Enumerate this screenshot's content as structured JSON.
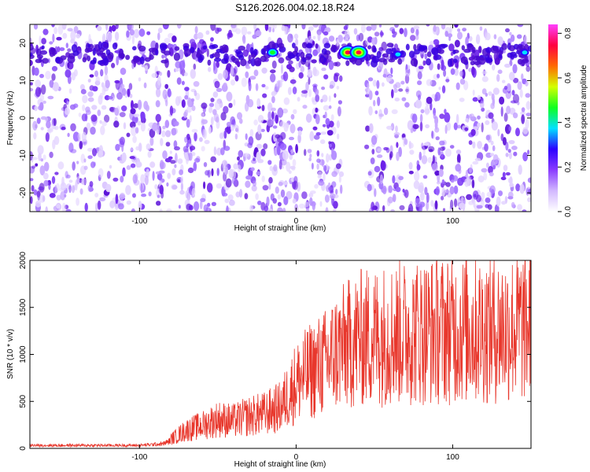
{
  "title": "S126.2026.004.02.18.R24",
  "chart_data": [
    {
      "type": "heatmap",
      "xlabel": "Height of straight line (km)",
      "ylabel": "Frequency (Hz)",
      "xlim": [
        -170,
        150
      ],
      "ylim": [
        -25,
        25
      ],
      "x_ticks": [
        -100,
        0,
        100
      ],
      "y_ticks": [
        -20,
        -10,
        0,
        10,
        20
      ],
      "colorbar": {
        "label": "Normalized spectral amplitude",
        "range": [
          0.0,
          0.84
        ],
        "ticks": [
          0.0,
          0.2,
          0.4,
          0.6,
          0.8
        ],
        "tick_labels": [
          "0.0",
          "0.2",
          "0.4",
          "0.6",
          "0.8"
        ],
        "colors": [
          "#ffffff",
          "#d2b8ff",
          "#8a3cff",
          "#2c00ff",
          "#00e0ff",
          "#10ff20",
          "#d4ff00",
          "#ff6a00",
          "#ff0040",
          "#ff40ff"
        ]
      },
      "hotspots": [
        {
          "x": -15,
          "y": 17.5,
          "value": 0.45
        },
        {
          "x": 33,
          "y": 17.5,
          "value": 0.7
        },
        {
          "x": 40,
          "y": 17.5,
          "value": 0.72
        },
        {
          "x": 65,
          "y": 17,
          "value": 0.38
        },
        {
          "x": 146,
          "y": 17.5,
          "value": 0.3
        }
      ],
      "band_frequency": 17,
      "gap_x_range": [
        30,
        45
      ]
    },
    {
      "type": "line",
      "xlabel": "Height of straight line (km)",
      "ylabel": "SNR (10 * v/v)",
      "xlim": [
        -170,
        150
      ],
      "ylim": [
        0,
        2000
      ],
      "x_ticks": [
        -100,
        0,
        100
      ],
      "y_ticks": [
        0,
        500,
        1000,
        1500,
        2000
      ],
      "color": "#e8372c",
      "envelope": {
        "x": [
          -170,
          -140,
          -100,
          -85,
          -78,
          -70,
          -60,
          -50,
          -40,
          -30,
          -20,
          -10,
          0,
          10,
          20,
          25,
          30,
          40,
          60,
          80,
          100,
          120,
          140,
          150
        ],
        "y": [
          40,
          40,
          40,
          60,
          120,
          200,
          250,
          320,
          300,
          350,
          380,
          450,
          720,
          850,
          950,
          1050,
          1100,
          1200,
          1250,
          1280,
          1300,
          1300,
          1320,
          1350
        ]
      }
    }
  ]
}
